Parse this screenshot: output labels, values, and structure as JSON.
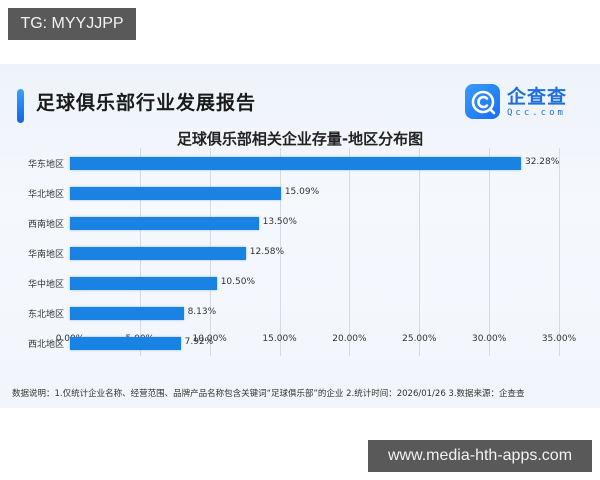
{
  "watermarks": {
    "top_left": "TG: MYYJJPP",
    "bottom_right": "www.media-hth-apps.com"
  },
  "header": {
    "report_title": "足球俱乐部行业发展报告",
    "logo": {
      "icon": "qcc-logo-icon",
      "name_cn": "企查查",
      "name_en": "Qcc.com",
      "color": "#1f6fe0"
    }
  },
  "chart_data": {
    "type": "bar",
    "orientation": "horizontal",
    "title": "足球俱乐部相关企业存量-地区分布图",
    "categories": [
      "华东地区",
      "华北地区",
      "西南地区",
      "华南地区",
      "华中地区",
      "东北地区",
      "西北地区"
    ],
    "values": [
      32.28,
      15.09,
      13.5,
      12.58,
      10.5,
      8.13,
      7.92
    ],
    "value_labels": [
      "32.28%",
      "15.09%",
      "13.50%",
      "12.58%",
      "10.50%",
      "8.13%",
      "7.92%"
    ],
    "xlabel": "",
    "ylabel": "",
    "xlim": [
      0,
      35
    ],
    "x_ticks": [
      "0.00%",
      "5.00%",
      "10.00%",
      "15.00%",
      "20.00%",
      "25.00%",
      "30.00%",
      "35.00%"
    ],
    "grid": "vertical",
    "legend": "none",
    "bar_color": "#1a82e2"
  },
  "footnote": "数据说明：1.仅统计企业名称、经营范围、品牌产品名称包含关键词“足球俱乐部”的企业  2.统计时间：2026/01/26  3.数据来源：企查查"
}
